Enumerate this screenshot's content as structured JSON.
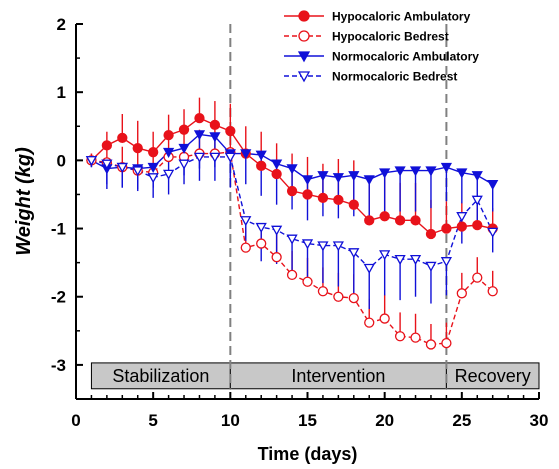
{
  "chart_data": {
    "type": "line",
    "xlabel": "Time (days)",
    "ylabel": "Weight (kg)",
    "xlim": [
      0,
      30
    ],
    "ylim": [
      -3.5,
      2
    ],
    "xticks": [
      0,
      5,
      10,
      15,
      20,
      25,
      30
    ],
    "yticks": [
      -3,
      -2,
      -1,
      0,
      1,
      2
    ],
    "grid": false,
    "legend_position": "top-right",
    "phase_dividers": [
      10,
      24
    ],
    "phases": [
      {
        "label": "Stabilization",
        "start": 1,
        "end": 10
      },
      {
        "label": "Intervention",
        "start": 10,
        "end": 24
      },
      {
        "label": "Recovery",
        "start": 24,
        "end": 30
      }
    ],
    "series": [
      {
        "name": "Hypocaloric Ambulatory",
        "color": "#e8121a",
        "marker": "circle",
        "filled": true,
        "dashed": false,
        "x": [
          1,
          2,
          3,
          4,
          5,
          6,
          7,
          8,
          9,
          10,
          11,
          12,
          13,
          14,
          15,
          16,
          17,
          18,
          19,
          20,
          21,
          22,
          23,
          24,
          25,
          26,
          27
        ],
        "y": [
          0,
          0.22,
          0.33,
          0.18,
          0.12,
          0.37,
          0.45,
          0.62,
          0.52,
          0.43,
          0.1,
          -0.08,
          -0.2,
          -0.45,
          -0.5,
          -0.55,
          -0.58,
          -0.65,
          -0.88,
          -0.82,
          -0.88,
          -0.88,
          -1.08,
          -1.0,
          -0.97,
          -0.95,
          -1.0
        ],
        "err": [
          0.1,
          0.2,
          0.35,
          0.4,
          0.3,
          0.3,
          0.3,
          0.3,
          0.35,
          0.4,
          0.4,
          0.5,
          0.45,
          0.55,
          0.55,
          0.5,
          0.6,
          0.65,
          0.55,
          0.6,
          0.55,
          0.55,
          0.5,
          0.4,
          0.35,
          0.3,
          0.3
        ]
      },
      {
        "name": "Hypocaloric Bedrest",
        "color": "#e8121a",
        "marker": "circle",
        "filled": false,
        "dashed": true,
        "x": [
          1,
          2,
          3,
          4,
          5,
          6,
          7,
          8,
          9,
          10,
          11,
          12,
          13,
          14,
          15,
          16,
          17,
          18,
          19,
          20,
          21,
          22,
          23,
          24,
          25,
          26,
          27
        ],
        "y": [
          0,
          -0.03,
          -0.1,
          -0.15,
          -0.18,
          0.05,
          0.05,
          0.1,
          0.1,
          0.12,
          -1.28,
          -1.22,
          -1.42,
          -1.68,
          -1.78,
          -1.92,
          -2.0,
          -2.02,
          -2.38,
          -2.32,
          -2.58,
          -2.6,
          -2.7,
          -2.68,
          -1.95,
          -1.72,
          -1.92
        ],
        "err": [
          0.1,
          0.2,
          0.3,
          0.3,
          0.3,
          0.4,
          0.4,
          0.35,
          0.35,
          0.3,
          0.3,
          0.3,
          0.35,
          0.35,
          0.35,
          0.35,
          0.35,
          0.35,
          0.35,
          0.35,
          0.35,
          0.35,
          0.3,
          0.3,
          0.3,
          0.3,
          0.3
        ]
      },
      {
        "name": "Normocaloric Ambulatory",
        "color": "#1010d8",
        "marker": "triangle-down",
        "filled": true,
        "dashed": false,
        "x": [
          1,
          2,
          3,
          4,
          5,
          6,
          7,
          8,
          9,
          10,
          11,
          12,
          13,
          14,
          15,
          16,
          17,
          18,
          19,
          20,
          21,
          22,
          23,
          24,
          25,
          26,
          27
        ],
        "y": [
          0,
          -0.12,
          -0.1,
          -0.12,
          -0.1,
          0.12,
          0.18,
          0.38,
          0.35,
          0.1,
          0.1,
          0.08,
          -0.05,
          -0.12,
          -0.28,
          -0.22,
          -0.25,
          -0.22,
          -0.28,
          -0.18,
          -0.15,
          -0.15,
          -0.15,
          -0.1,
          -0.18,
          -0.22,
          -0.35
        ],
        "err": [
          0.1,
          0.3,
          0.3,
          0.3,
          0.3,
          0.4,
          0.4,
          0.5,
          0.45,
          0.5,
          0.45,
          0.6,
          0.6,
          0.6,
          0.6,
          0.6,
          0.6,
          0.6,
          0.6,
          0.6,
          0.6,
          0.6,
          0.55,
          0.5,
          0.45,
          0.45,
          0.4
        ]
      },
      {
        "name": "Normocaloric Bedrest",
        "color": "#1010d8",
        "marker": "triangle-down",
        "filled": false,
        "dashed": true,
        "x": [
          1,
          2,
          3,
          4,
          5,
          6,
          7,
          8,
          9,
          10,
          11,
          12,
          13,
          14,
          15,
          16,
          17,
          18,
          19,
          20,
          21,
          22,
          23,
          24,
          25,
          26,
          27
        ],
        "y": [
          0,
          -0.05,
          -0.1,
          -0.15,
          -0.25,
          -0.2,
          -0.05,
          0.05,
          0.05,
          0.05,
          -0.88,
          -0.98,
          -1.02,
          -1.15,
          -1.22,
          -1.25,
          -1.25,
          -1.35,
          -1.58,
          -1.38,
          -1.45,
          -1.45,
          -1.55,
          -1.48,
          -0.82,
          -0.58,
          -1.05
        ],
        "err": [
          0.1,
          0.3,
          0.3,
          0.3,
          0.3,
          0.3,
          0.3,
          0.35,
          0.35,
          0.3,
          0.3,
          0.5,
          0.5,
          0.55,
          0.55,
          0.55,
          0.6,
          0.6,
          0.6,
          0.6,
          0.6,
          0.55,
          0.55,
          0.5,
          0.4,
          0.3,
          0.3
        ]
      }
    ]
  }
}
